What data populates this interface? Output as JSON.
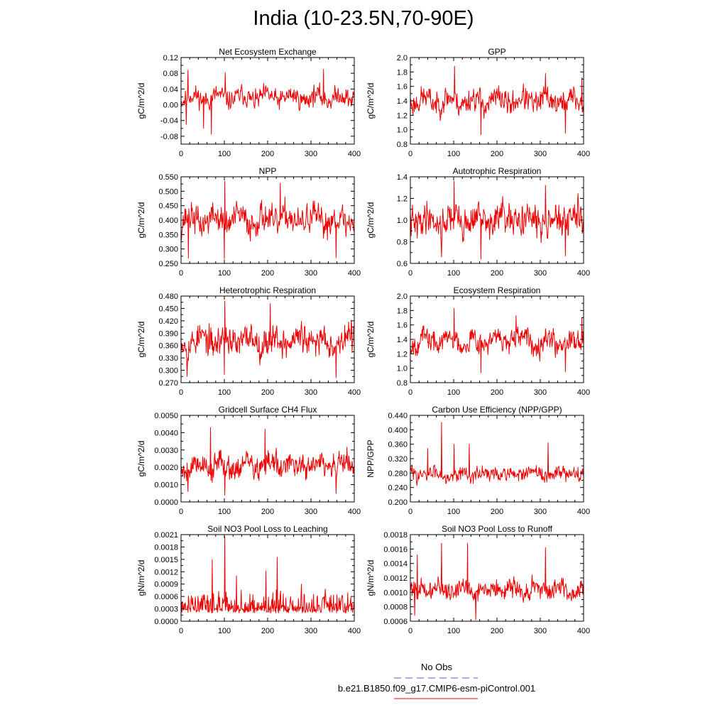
{
  "figure": {
    "title": "India (10-23.5N,70-90E)"
  },
  "legend": {
    "obs_label": "No Obs",
    "obs_color": "#5555dd",
    "model_label": "b.e21.B1850.f09_g17.CMIP6-esm-piControl.001",
    "model_color": "#ee0000"
  },
  "chart_data": [
    {
      "type": "line",
      "title": "Net Ecosystem Exchange",
      "ylabel": "gC/m^2/d",
      "xlim": [
        0,
        400
      ],
      "xticks": [
        0,
        100,
        200,
        300,
        400
      ],
      "ylim": [
        -0.1,
        0.12
      ],
      "yticks": [
        -0.08,
        -0.04,
        0.0,
        0.04,
        0.08,
        0.12
      ],
      "ytick_labels": [
        "-0.08",
        "-0.04",
        "0.00",
        "0.04",
        "0.08",
        "0.12"
      ],
      "series": [
        {
          "name": "b.e21.B1850.f09_g17.CMIP6-esm-piControl.001",
          "color": "#ee0000",
          "base": 0.018,
          "amp": 0.022,
          "n": 400,
          "seed": 11,
          "spikes": [
            [
              16,
              0.088
            ],
            [
              70,
              -0.075
            ],
            [
              102,
              0.082
            ],
            [
              329,
              0.09
            ],
            [
              52,
              -0.06
            ],
            [
              12,
              -0.05
            ]
          ]
        }
      ]
    },
    {
      "type": "line",
      "title": "GPP",
      "ylabel": "gC/m^2/d",
      "xlim": [
        0,
        400
      ],
      "xticks": [
        0,
        100,
        200,
        300,
        400
      ],
      "ylim": [
        0.8,
        2.0
      ],
      "yticks": [
        0.8,
        1.0,
        1.2,
        1.4,
        1.6,
        1.8,
        2.0
      ],
      "ytick_labels": [
        "0.8",
        "1.0",
        "1.2",
        "1.4",
        "1.6",
        "1.8",
        "2.0"
      ],
      "series": [
        {
          "name": "b.e21.B1850.f09_g17.CMIP6-esm-piControl.001",
          "color": "#ee0000",
          "base": 1.4,
          "amp": 0.15,
          "n": 400,
          "seed": 23,
          "spikes": [
            [
              102,
              1.88
            ],
            [
              163,
              0.93
            ],
            [
              312,
              1.78
            ],
            [
              358,
              0.95
            ],
            [
              396,
              1.72
            ]
          ]
        }
      ]
    },
    {
      "type": "line",
      "title": "NPP",
      "ylabel": "gC/m^2/d",
      "xlim": [
        0,
        400
      ],
      "xticks": [
        0,
        100,
        200,
        300,
        400
      ],
      "ylim": [
        0.25,
        0.55
      ],
      "yticks": [
        0.25,
        0.3,
        0.35,
        0.4,
        0.45,
        0.5,
        0.55
      ],
      "ytick_labels": [
        "0.250",
        "0.300",
        "0.350",
        "0.400",
        "0.450",
        "0.500",
        "0.550"
      ],
      "series": [
        {
          "name": "b.e21.B1850.f09_g17.CMIP6-esm-piControl.001",
          "color": "#ee0000",
          "base": 0.4,
          "amp": 0.045,
          "n": 400,
          "seed": 37,
          "spikes": [
            [
              101,
              0.535
            ],
            [
              100,
              0.265
            ],
            [
              17,
              0.268
            ],
            [
              229,
              0.528
            ],
            [
              358,
              0.27
            ]
          ]
        }
      ]
    },
    {
      "type": "line",
      "title": "Autotrophic Respiration",
      "ylabel": "gC/m^2/d",
      "xlim": [
        0,
        400
      ],
      "xticks": [
        0,
        100,
        200,
        300,
        400
      ],
      "ylim": [
        0.6,
        1.4
      ],
      "yticks": [
        0.6,
        0.8,
        1.0,
        1.2,
        1.4
      ],
      "ytick_labels": [
        "0.6",
        "0.8",
        "1.0",
        "1.2",
        "1.4"
      ],
      "series": [
        {
          "name": "b.e21.B1850.f09_g17.CMIP6-esm-piControl.001",
          "color": "#ee0000",
          "base": 1.0,
          "amp": 0.13,
          "n": 400,
          "seed": 41,
          "spikes": [
            [
              101,
              1.36
            ],
            [
              163,
              0.64
            ],
            [
              358,
              0.67
            ],
            [
              312,
              1.32
            ],
            [
              72,
              0.66
            ]
          ]
        }
      ]
    },
    {
      "type": "line",
      "title": "Heterotrophic Respiration",
      "ylabel": "gC/m^2/d",
      "xlim": [
        0,
        400
      ],
      "xticks": [
        0,
        100,
        200,
        300,
        400
      ],
      "ylim": [
        0.27,
        0.48
      ],
      "yticks": [
        0.27,
        0.3,
        0.33,
        0.36,
        0.39,
        0.42,
        0.45,
        0.48
      ],
      "ytick_labels": [
        "0.270",
        "0.300",
        "0.330",
        "0.360",
        "0.390",
        "0.420",
        "0.450",
        "0.480"
      ],
      "series": [
        {
          "name": "b.e21.B1850.f09_g17.CMIP6-esm-piControl.001",
          "color": "#ee0000",
          "base": 0.372,
          "amp": 0.032,
          "n": 400,
          "seed": 53,
          "spikes": [
            [
              101,
              0.468
            ],
            [
              206,
              0.462
            ],
            [
              14,
              0.285
            ],
            [
              358,
              0.282
            ],
            [
              100,
              0.29
            ]
          ]
        }
      ]
    },
    {
      "type": "line",
      "title": "Ecosystem Respiration",
      "ylabel": "gC/m^2/d",
      "xlim": [
        0,
        400
      ],
      "xticks": [
        0,
        100,
        200,
        300,
        400
      ],
      "ylim": [
        0.8,
        2.0
      ],
      "yticks": [
        0.8,
        1.0,
        1.2,
        1.4,
        1.6,
        1.8,
        2.0
      ],
      "ytick_labels": [
        "0.8",
        "1.0",
        "1.2",
        "1.4",
        "1.6",
        "1.8",
        "2.0"
      ],
      "series": [
        {
          "name": "b.e21.B1850.f09_g17.CMIP6-esm-piControl.001",
          "color": "#ee0000",
          "base": 1.38,
          "amp": 0.14,
          "n": 400,
          "seed": 67,
          "spikes": [
            [
              101,
              1.83
            ],
            [
              163,
              0.94
            ],
            [
              358,
              0.95
            ],
            [
              396,
              1.7
            ],
            [
              244,
              1.73
            ]
          ]
        }
      ]
    },
    {
      "type": "line",
      "title": "Gridcell Surface CH4 Flux",
      "ylabel": "gC/m^2/d",
      "xlim": [
        0,
        400
      ],
      "xticks": [
        0,
        100,
        200,
        300,
        400
      ],
      "ylim": [
        0.0,
        0.005
      ],
      "yticks": [
        0.0,
        0.001,
        0.002,
        0.003,
        0.004,
        0.005
      ],
      "ytick_labels": [
        "0.0000",
        "0.0010",
        "0.0020",
        "0.0030",
        "0.0040",
        "0.0050"
      ],
      "series": [
        {
          "name": "b.e21.B1850.f09_g17.CMIP6-esm-piControl.001",
          "color": "#ee0000",
          "base": 0.0021,
          "amp": 0.00065,
          "n": 400,
          "seed": 79,
          "spikes": [
            [
              68,
              0.0043
            ],
            [
              194,
              0.0042
            ],
            [
              101,
              0.0004
            ],
            [
              16,
              0.0006
            ],
            [
              358,
              0.0005
            ]
          ]
        }
      ]
    },
    {
      "type": "line",
      "title": "Carbon Use Efficiency (NPP/GPP)",
      "ylabel": "NPP/GPP",
      "xlim": [
        0,
        400
      ],
      "xticks": [
        0,
        100,
        200,
        300,
        400
      ],
      "ylim": [
        0.2,
        0.44
      ],
      "yticks": [
        0.2,
        0.24,
        0.28,
        0.32,
        0.36,
        0.4,
        0.44
      ],
      "ytick_labels": [
        "0.200",
        "0.240",
        "0.280",
        "0.320",
        "0.360",
        "0.400",
        "0.440"
      ],
      "series": [
        {
          "name": "b.e21.B1850.f09_g17.CMIP6-esm-piControl.001",
          "color": "#ee0000",
          "base": 0.277,
          "amp": 0.018,
          "n": 400,
          "seed": 83,
          "spikes": [
            [
              72,
              0.42
            ],
            [
              318,
              0.364
            ],
            [
              136,
              0.36
            ],
            [
              101,
              0.36
            ],
            [
              40,
              0.348
            ]
          ]
        }
      ]
    },
    {
      "type": "line",
      "title": "Soil NO3 Pool Loss to Leaching",
      "ylabel": "gN/m^2/d",
      "xlim": [
        0,
        400
      ],
      "xticks": [
        0,
        100,
        200,
        300,
        400
      ],
      "ylim": [
        0.0,
        0.0021
      ],
      "yticks": [
        0.0,
        0.0003,
        0.0006,
        0.0009,
        0.0012,
        0.0015,
        0.0018,
        0.0021
      ],
      "ytick_labels": [
        "0.0000",
        "0.0003",
        "0.0006",
        "0.0009",
        "0.0012",
        "0.0015",
        "0.0018",
        "0.0021"
      ],
      "series": [
        {
          "name": "b.e21.B1850.f09_g17.CMIP6-esm-piControl.001",
          "color": "#ee0000",
          "base": 0.00035,
          "amp": 0.00015,
          "n": 400,
          "seed": 97,
          "nonneg": true,
          "spikes": [
            [
              101,
              0.00205
            ],
            [
              72,
              0.0015
            ],
            [
              222,
              0.00155
            ],
            [
              196,
              0.00122
            ],
            [
              128,
              0.0011
            ],
            [
              278,
              0.0009
            ]
          ]
        }
      ]
    },
    {
      "type": "line",
      "title": "Soil NO3 Pool Loss to Runoff",
      "ylabel": "gN/m^2/d",
      "xlim": [
        0,
        400
      ],
      "xticks": [
        0,
        100,
        200,
        300,
        400
      ],
      "ylim": [
        0.0006,
        0.0018
      ],
      "yticks": [
        0.0006,
        0.0008,
        0.001,
        0.0012,
        0.0014,
        0.0016,
        0.0018
      ],
      "ytick_labels": [
        "0.0006",
        "0.0008",
        "0.0010",
        "0.0012",
        "0.0014",
        "0.0016",
        "0.0018"
      ],
      "series": [
        {
          "name": "b.e21.B1850.f09_g17.CMIP6-esm-piControl.001",
          "color": "#ee0000",
          "base": 0.00104,
          "amp": 0.00012,
          "n": 400,
          "seed": 101,
          "spikes": [
            [
              72,
              0.00168
            ],
            [
              132,
              0.00168
            ],
            [
              312,
              0.00162
            ],
            [
              16,
              0.00152
            ],
            [
              151,
              0.00062
            ],
            [
              10,
              0.00068
            ]
          ]
        }
      ]
    }
  ]
}
